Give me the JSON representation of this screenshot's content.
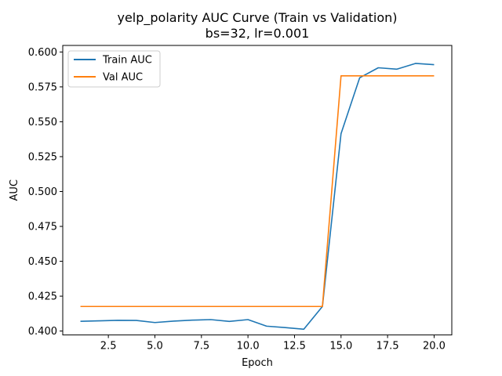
{
  "chart_data": {
    "type": "line",
    "title": "yelp_polarity AUC Curve (Train vs Validation)",
    "subtitle": "bs=32, lr=0.001",
    "xlabel": "Epoch",
    "ylabel": "AUC",
    "xlim": [
      0.05,
      20.95
    ],
    "ylim": [
      0.3972,
      0.6047
    ],
    "xticks": [
      2.5,
      5.0,
      7.5,
      10.0,
      12.5,
      15.0,
      17.5,
      20.0
    ],
    "xtick_labels": [
      "2.5",
      "5.0",
      "7.5",
      "10.0",
      "12.5",
      "15.0",
      "17.5",
      "20.0"
    ],
    "yticks": [
      0.4,
      0.425,
      0.45,
      0.475,
      0.5,
      0.525,
      0.55,
      0.575,
      0.6
    ],
    "ytick_labels": [
      "0.400",
      "0.425",
      "0.450",
      "0.475",
      "0.500",
      "0.525",
      "0.550",
      "0.575",
      "0.600"
    ],
    "grid": false,
    "legend": "upper-left",
    "x": [
      1,
      2,
      3,
      4,
      5,
      6,
      7,
      8,
      9,
      10,
      11,
      12,
      13,
      14,
      15,
      16,
      17,
      18,
      19,
      20
    ],
    "series": [
      {
        "name": "Train AUC",
        "color": "#1f77b4",
        "values": [
          0.407,
          0.4073,
          0.4077,
          0.4076,
          0.4061,
          0.4071,
          0.4078,
          0.4082,
          0.4069,
          0.4082,
          0.4035,
          0.4025,
          0.4013,
          0.4176,
          0.5415,
          0.5815,
          0.5887,
          0.5877,
          0.5918,
          0.5909
        ]
      },
      {
        "name": "Val AUC",
        "color": "#ff7f0e",
        "values": [
          0.4176,
          0.4176,
          0.4176,
          0.4176,
          0.4176,
          0.4176,
          0.4176,
          0.4176,
          0.4176,
          0.4176,
          0.4176,
          0.4176,
          0.4176,
          0.4176,
          0.5829,
          0.5829,
          0.5829,
          0.5829,
          0.5829,
          0.5829
        ]
      }
    ]
  }
}
